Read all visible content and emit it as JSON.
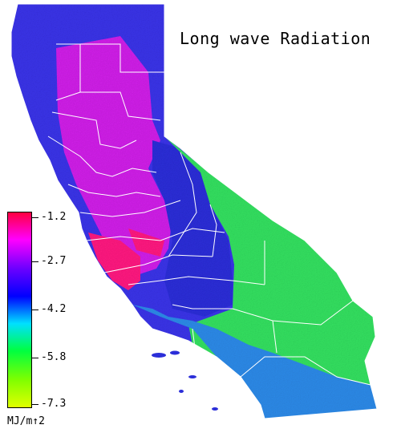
{
  "map": {
    "title": "Long wave Radiation",
    "region_colors": {
      "north": "#3a33e8",
      "central_valley": "#d020e8",
      "coast_hot": "#ff1a80",
      "sierra": "#2b2ed8",
      "desert": "#33e060",
      "south_coast": "#2d8ae8",
      "boundary": "#ffffff"
    }
  },
  "legend": {
    "labels": [
      "-1.2",
      "-2.7",
      "-4.2",
      "-5.8",
      "-7.3"
    ],
    "units": "MJ/m↑2",
    "colors": [
      "#ff0040",
      "#ff00ff",
      "#6a00ff",
      "#0000ff",
      "#00e0ff",
      "#00ff40",
      "#80ff00",
      "#e0ff00"
    ]
  }
}
